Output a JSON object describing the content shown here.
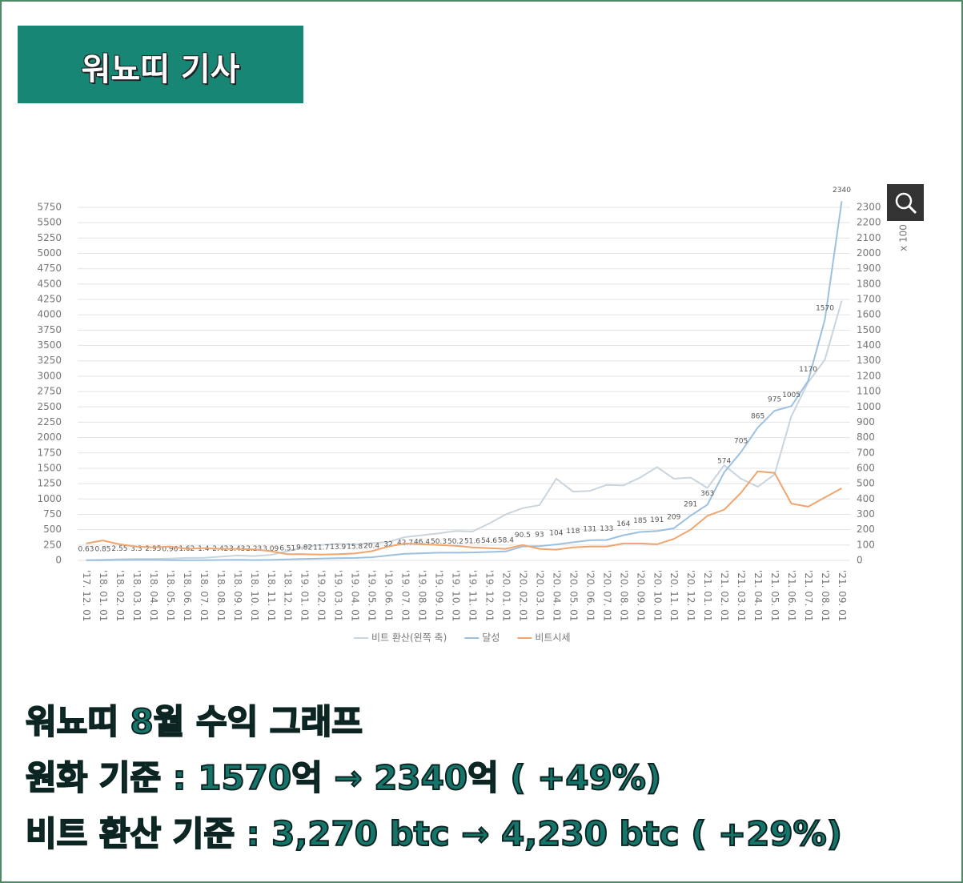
{
  "header": {
    "title": "워뇨띠 기사"
  },
  "chart_data": {
    "type": "line",
    "categories": [
      "'17. 12. 01",
      "'18. 01. 01",
      "'18. 02. 01",
      "'18. 03. 01",
      "'18. 04. 01",
      "'18. 05. 01",
      "'18. 06. 01",
      "'18. 07. 01",
      "'18. 08. 01",
      "'18. 09. 01",
      "'18. 10. 01",
      "'18. 11. 01",
      "'18. 12. 01",
      "'19. 01. 01",
      "'19. 02. 01",
      "'19. 03. 01",
      "'19. 04. 01",
      "'19. 05. 01",
      "'19. 06. 01",
      "'19. 07. 01",
      "'19. 08. 01",
      "'19. 09. 01",
      "'19. 10. 01",
      "'19. 11. 01",
      "'19. 12. 01",
      "'20. 01. 01",
      "'20. 02. 01",
      "'20. 03. 01",
      "'20. 04. 01",
      "'20. 05. 01",
      "'20. 06. 01",
      "'20. 07. 01",
      "'20. 08. 01",
      "'20. 09. 01",
      "'20. 10. 01",
      "'20. 11. 01",
      "'20. 12. 01",
      "'21. 01. 01",
      "'21. 02. 01",
      "'21. 03. 01",
      "'21. 04. 01",
      "'21. 05. 01",
      "'21. 06. 01",
      "'21. 07. 01",
      "'21. 08. 01",
      "'21. 09. 01"
    ],
    "series": [
      {
        "name": "비트 환산(왼쪽 축)",
        "color": "#c9d5de",
        "axis": "y",
        "values": [
          5,
          10,
          20,
          25,
          25,
          30,
          40,
          40,
          60,
          80,
          70,
          90,
          150,
          220,
          250,
          270,
          260,
          280,
          300,
          380,
          410,
          440,
          480,
          470,
          600,
          750,
          850,
          900,
          1330,
          1120,
          1130,
          1230,
          1220,
          1350,
          1520,
          1330,
          1350,
          1180,
          1550,
          1330,
          1200,
          1400,
          2350,
          2900,
          3270,
          4230
        ]
      },
      {
        "name": "달성",
        "color": "#9cc1e0",
        "axis": "y2",
        "data_labels": true,
        "values": [
          0.63,
          0.85,
          2.55,
          3.3,
          2.95,
          0.96,
          1.62,
          1.4,
          2.42,
          3.43,
          2.23,
          3.09,
          6.51,
          9.82,
          11.7,
          13.9,
          15.8,
          20.4,
          32,
          42.7,
          46.4,
          50.3,
          50.2,
          51.6,
          54.6,
          58.4,
          90.5,
          93,
          104,
          118,
          131,
          133,
          164,
          185,
          191,
          209,
          291,
          363,
          574,
          705,
          865,
          975,
          1005,
          1170,
          1570,
          2340
        ]
      },
      {
        "name": "비트시세",
        "color": "#f0a46e",
        "axis": "y2",
        "values": [
          110,
          130,
          105,
          90,
          85,
          90,
          75,
          80,
          75,
          75,
          72,
          60,
          40,
          40,
          38,
          40,
          45,
          60,
          90,
          110,
          105,
          100,
          95,
          85,
          80,
          75,
          100,
          75,
          70,
          85,
          90,
          90,
          110,
          110,
          105,
          140,
          200,
          290,
          330,
          440,
          580,
          570,
          370,
          350,
          410,
          470
        ]
      }
    ],
    "ylim": [
      0,
      5750
    ],
    "yticks": [
      0,
      250,
      500,
      750,
      1000,
      1250,
      1500,
      1750,
      2000,
      2250,
      2500,
      2750,
      3000,
      3250,
      3500,
      3750,
      4000,
      4250,
      4500,
      4750,
      5000,
      5250,
      5500,
      5750
    ],
    "y2lim": [
      0,
      2300
    ],
    "y2ticks": [
      0,
      100,
      200,
      300,
      400,
      500,
      600,
      700,
      800,
      900,
      1000,
      1100,
      1200,
      1300,
      1400,
      1500,
      1600,
      1700,
      1800,
      1900,
      2000,
      2100,
      2200,
      2300
    ],
    "y2_unit": "x 100",
    "grid": true,
    "legend": "bottom"
  },
  "caption": {
    "lines": [
      "워뇨띠 8월 수익 그래프",
      "원화 기준 : 1570억 → 2340억 ( +49%)",
      "비트 환산 기준 : 3,270 btc → 4,230 btc ( +29%)"
    ]
  }
}
